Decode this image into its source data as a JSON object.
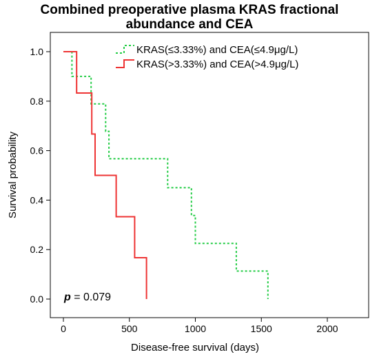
{
  "chart_data": {
    "type": "line",
    "title_lines": [
      "Combined preoperative plasma KRAS fractional",
      "abundance and CEA"
    ],
    "xlabel": "Disease-free survival (days)",
    "ylabel": "Survival probability",
    "xlim": [
      0,
      2000
    ],
    "ylim": [
      0.0,
      1.0
    ],
    "x_ticks": [
      0,
      500,
      1000,
      1500,
      2000
    ],
    "y_ticks": [
      0.0,
      0.2,
      0.4,
      0.6,
      0.8,
      1.0
    ],
    "y_tick_labels": [
      "0.0",
      "0.2",
      "0.4",
      "0.6",
      "0.8",
      "1.0"
    ],
    "legend_position": "top-right",
    "annotation": {
      "italic": "p",
      "rest": " = 0.079"
    },
    "series": [
      {
        "name": "KRAS(≤3.33%) and CEA(≤4.9μg/L)",
        "color": "#22cc44",
        "style": "dotted",
        "steps": [
          [
            0,
            1.0
          ],
          [
            65,
            0.9
          ],
          [
            210,
            0.789
          ],
          [
            320,
            0.678
          ],
          [
            345,
            0.567
          ],
          [
            790,
            0.45
          ],
          [
            970,
            0.338
          ],
          [
            1000,
            0.225
          ],
          [
            1310,
            0.113
          ],
          [
            1550,
            0.0
          ]
        ]
      },
      {
        "name": "KRAS(>3.33%) and CEA(>4.9μg/L)",
        "color": "#ee3333",
        "style": "solid",
        "steps": [
          [
            0,
            1.0
          ],
          [
            100,
            0.833
          ],
          [
            215,
            0.667
          ],
          [
            240,
            0.5
          ],
          [
            400,
            0.333
          ],
          [
            540,
            0.167
          ],
          [
            630,
            0.0
          ]
        ]
      }
    ]
  }
}
